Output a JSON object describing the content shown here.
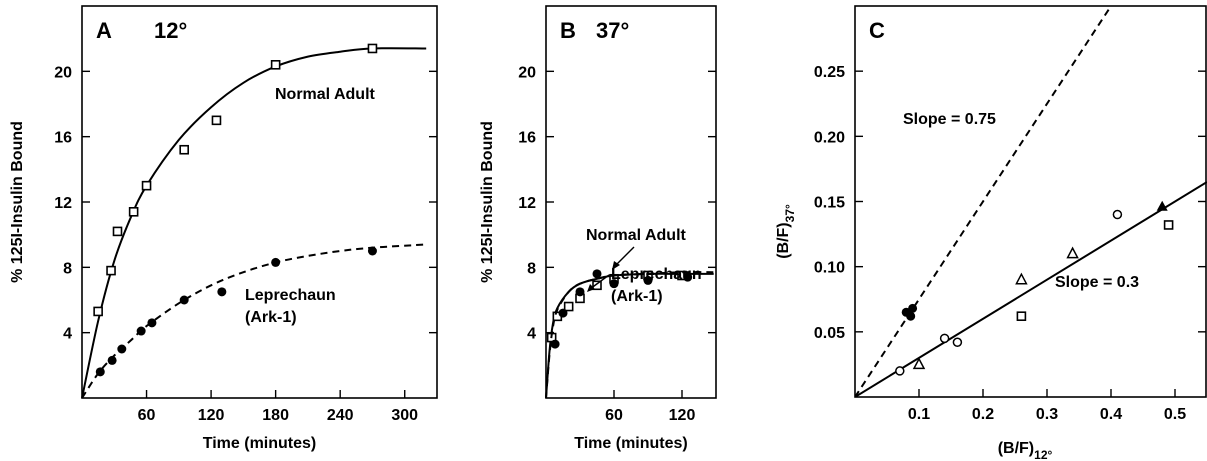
{
  "chart_data": [
    {
      "type": "scatter",
      "panel_label": "A",
      "panel_temp": "12°",
      "xlabel": "Time (minutes)",
      "ylabel": "% 125I-Insulin Bound",
      "xlim": [
        0,
        330
      ],
      "ylim": [
        0,
        24
      ],
      "xticks": [
        60,
        120,
        180,
        240,
        300
      ],
      "yticks": [
        4,
        8,
        12,
        16,
        20
      ],
      "series": [
        {
          "name": "Normal Adult",
          "marker": "square-open",
          "line": "solid",
          "points": [
            [
              15,
              5.3
            ],
            [
              27,
              7.8
            ],
            [
              33,
              10.2
            ],
            [
              48,
              11.4
            ],
            [
              60,
              13
            ],
            [
              95,
              15.2
            ],
            [
              125,
              17
            ],
            [
              180,
              20.4
            ],
            [
              270,
              21.4
            ]
          ],
          "curve": [
            [
              0,
              0
            ],
            [
              15,
              4.7
            ],
            [
              30,
              8.4
            ],
            [
              45,
              11
            ],
            [
              60,
              13
            ],
            [
              90,
              15.8
            ],
            [
              120,
              17.8
            ],
            [
              150,
              19.3
            ],
            [
              180,
              20.3
            ],
            [
              210,
              20.9
            ],
            [
              240,
              21.2
            ],
            [
              270,
              21.4
            ],
            [
              320,
              21.4
            ]
          ]
        },
        {
          "name": "Leprechaun (Ark-1)",
          "marker": "circle-filled",
          "line": "dashed",
          "points": [
            [
              17,
              1.6
            ],
            [
              28,
              2.3
            ],
            [
              37,
              3
            ],
            [
              55,
              4.1
            ],
            [
              65,
              4.6
            ],
            [
              95,
              6
            ],
            [
              130,
              6.5
            ],
            [
              180,
              8.3
            ],
            [
              270,
              9
            ]
          ],
          "curve": [
            [
              0,
              0
            ],
            [
              15,
              1.5
            ],
            [
              30,
              2.6
            ],
            [
              45,
              3.5
            ],
            [
              60,
              4.4
            ],
            [
              90,
              5.8
            ],
            [
              120,
              6.9
            ],
            [
              150,
              7.7
            ],
            [
              180,
              8.3
            ],
            [
              210,
              8.7
            ],
            [
              240,
              9
            ],
            [
              270,
              9.2
            ],
            [
              320,
              9.4
            ]
          ]
        }
      ],
      "annotations": [
        "Normal Adult",
        "Leprechaun",
        "(Ark-1)"
      ]
    },
    {
      "type": "scatter",
      "panel_label": "B",
      "panel_temp": "37°",
      "xlabel": "Time (minutes)",
      "ylabel": "% 125I-Insulin Bound",
      "xlim": [
        0,
        150
      ],
      "ylim": [
        0,
        24
      ],
      "xticks": [
        60,
        120
      ],
      "yticks": [
        4,
        8,
        12,
        16,
        20
      ],
      "series": [
        {
          "name": "Normal Adult",
          "marker": "square-open",
          "line": "solid",
          "points": [
            [
              5,
              3.7
            ],
            [
              10,
              5
            ],
            [
              20,
              5.6
            ],
            [
              30,
              6.1
            ],
            [
              45,
              6.9
            ],
            [
              60,
              7.3
            ],
            [
              90,
              7.5
            ],
            [
              120,
              7.5
            ]
          ],
          "curve": [
            [
              0,
              0
            ],
            [
              3,
              2.8
            ],
            [
              6,
              4.5
            ],
            [
              10,
              5.5
            ],
            [
              20,
              6.5
            ],
            [
              30,
              7
            ],
            [
              45,
              7.3
            ],
            [
              60,
              7.5
            ],
            [
              90,
              7.6
            ],
            [
              120,
              7.6
            ],
            [
              148,
              7.6
            ]
          ]
        },
        {
          "name": "Leprechaun (Ark-1)",
          "marker": "circle-filled",
          "line": "dashed",
          "points": [
            [
              8,
              3.3
            ],
            [
              15,
              5.2
            ],
            [
              30,
              6.5
            ],
            [
              45,
              7.6
            ],
            [
              60,
              7
            ],
            [
              90,
              7.2
            ],
            [
              125,
              7.4
            ]
          ],
          "curve": [
            [
              0,
              0
            ],
            [
              3,
              2.6
            ],
            [
              6,
              4.3
            ],
            [
              10,
              5.4
            ],
            [
              20,
              6.5
            ],
            [
              30,
              7
            ],
            [
              45,
              7.3
            ],
            [
              60,
              7.5
            ],
            [
              90,
              7.6
            ],
            [
              120,
              7.7
            ],
            [
              148,
              7.7
            ]
          ]
        }
      ],
      "annotations": [
        "Normal Adult",
        "Leprechaun",
        "(Ark-1)"
      ]
    },
    {
      "type": "scatter",
      "panel_label": "C",
      "xlabel_main": "(B/F)",
      "xlabel_sub": "12°",
      "ylabel_main": "(B/F)",
      "ylabel_sub": "37°",
      "xlim": [
        0,
        0.55
      ],
      "ylim": [
        0,
        0.3
      ],
      "xticks": [
        0.1,
        0.2,
        0.3,
        0.4,
        0.5
      ],
      "xtick_labels": [
        "0.1",
        "0.2",
        "0.3",
        "0.4",
        "0.5"
      ],
      "yticks": [
        0.05,
        0.1,
        0.15,
        0.2,
        0.25
      ],
      "ytick_labels": [
        "0.05",
        "0.10",
        "0.15",
        "0.20",
        "0.25"
      ],
      "lines": [
        {
          "label": "Slope = 0.75",
          "style": "dashed",
          "from": [
            0,
            0
          ],
          "to": [
            0.4,
            0.3
          ]
        },
        {
          "label": "Slope = 0.3",
          "style": "solid",
          "from": [
            0,
            0
          ],
          "to": [
            0.55,
            0.165
          ]
        }
      ],
      "series": [
        {
          "marker": "circle-open",
          "points": [
            [
              0.07,
              0.02
            ],
            [
              0.14,
              0.045
            ],
            [
              0.16,
              0.042
            ],
            [
              0.41,
              0.14
            ]
          ]
        },
        {
          "marker": "circle-filled",
          "points": [
            [
              0.08,
              0.065
            ],
            [
              0.09,
              0.068
            ],
            [
              0.087,
              0.062
            ]
          ]
        },
        {
          "marker": "triangle-open",
          "points": [
            [
              0.1,
              0.025
            ],
            [
              0.26,
              0.09
            ],
            [
              0.34,
              0.11
            ]
          ]
        },
        {
          "marker": "triangle-filled",
          "points": [
            [
              0.48,
              0.146
            ]
          ]
        },
        {
          "marker": "square-open",
          "points": [
            [
              0.26,
              0.062
            ],
            [
              0.49,
              0.132
            ]
          ]
        }
      ]
    }
  ]
}
